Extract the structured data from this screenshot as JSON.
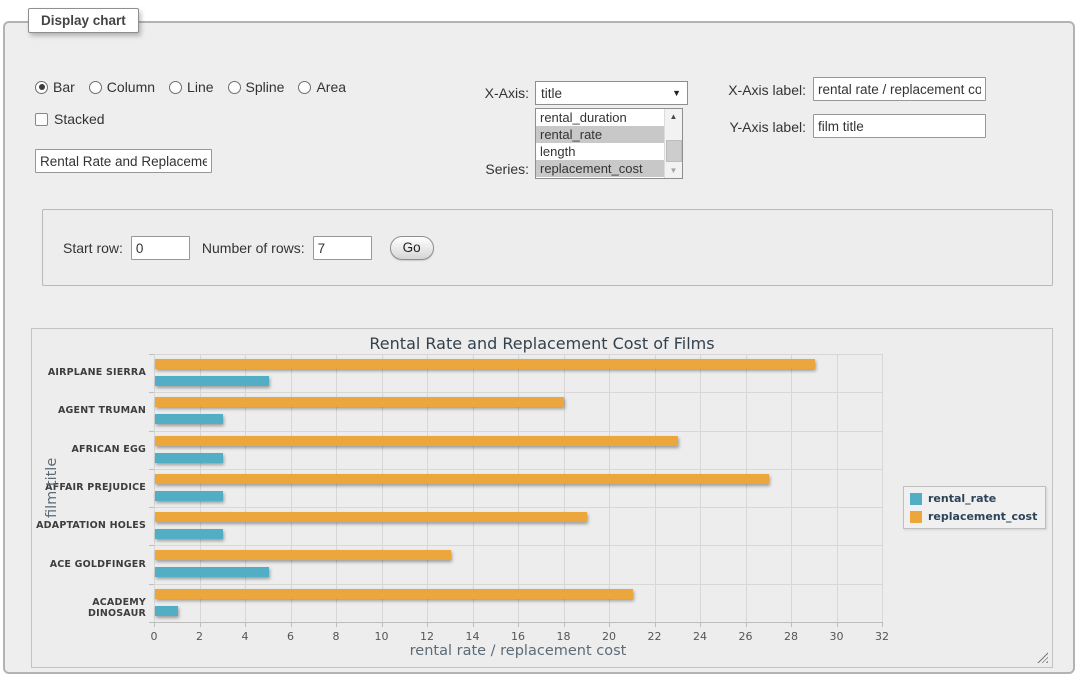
{
  "panel_legend": "Display chart",
  "chart_type": {
    "options": [
      {
        "label": "Bar",
        "selected": true
      },
      {
        "label": "Column",
        "selected": false
      },
      {
        "label": "Line",
        "selected": false
      },
      {
        "label": "Spline",
        "selected": false
      },
      {
        "label": "Area",
        "selected": false
      }
    ]
  },
  "stacked": {
    "label": "Stacked",
    "checked": false
  },
  "chart_title_field": {
    "value": "Rental Rate and Replacemer"
  },
  "x_axis_select": {
    "label": "X-Axis:",
    "value": "title"
  },
  "series_list": {
    "label": "Series:",
    "options": [
      {
        "text": "rental_duration",
        "selected": false
      },
      {
        "text": "rental_rate",
        "selected": true
      },
      {
        "text": "length",
        "selected": false
      },
      {
        "text": "replacement_cost",
        "selected": true
      }
    ]
  },
  "x_axis_label_field": {
    "label": "X-Axis label:",
    "value": "rental rate / replacement cost"
  },
  "y_axis_label_field": {
    "label": "Y-Axis label:",
    "value": "film title"
  },
  "row_controls": {
    "start_row_label": "Start row:",
    "start_row_value": "0",
    "num_rows_label": "Number of rows:",
    "num_rows_value": "7",
    "go_label": "Go"
  },
  "colors": {
    "rental_rate": "#52aec5",
    "replacement_cost": "#eba73c",
    "panel_background": "#ededed",
    "gridline": "#d7d7d7"
  },
  "chart_data": {
    "type": "bar",
    "orientation": "horizontal",
    "title": "Rental Rate and Replacement Cost of Films",
    "categories": [
      "AIRPLANE SIERRA",
      "AGENT TRUMAN",
      "AFRICAN EGG",
      "AFFAIR PREJUDICE",
      "ADAPTATION HOLES",
      "ACE GOLDFINGER",
      "ACADEMY DINOSAUR"
    ],
    "series": [
      {
        "name": "rental_rate",
        "color": "#52aec5",
        "values": [
          4.99,
          2.99,
          2.99,
          2.99,
          2.99,
          4.99,
          0.99
        ]
      },
      {
        "name": "replacement_cost",
        "color": "#eba73c",
        "values": [
          28.99,
          17.99,
          22.99,
          26.99,
          18.99,
          12.99,
          20.99
        ]
      }
    ],
    "xlabel": "rental rate / replacement cost",
    "ylabel": "film title",
    "xlim": [
      0,
      32
    ],
    "xtick_step": 2,
    "grid": true,
    "legend_position": "right-middle",
    "series_draw_order_top_to_bottom": [
      "replacement_cost",
      "rental_rate"
    ]
  }
}
